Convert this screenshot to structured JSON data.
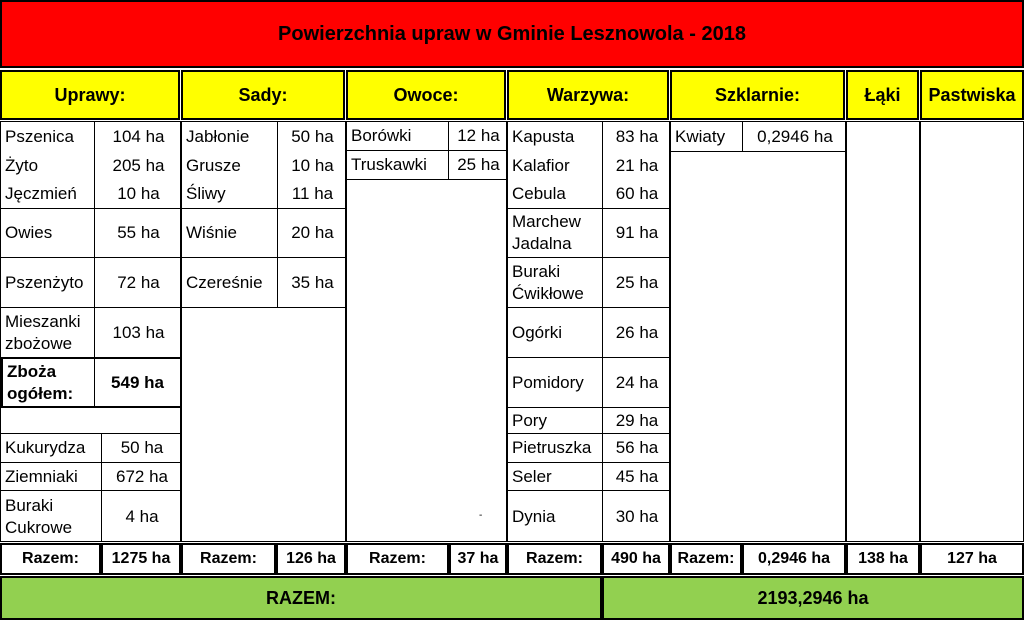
{
  "title": "Powierzchnia upraw w Gminie Lesznowola - 2018",
  "headers": {
    "uprawy": "Uprawy:",
    "sady": "Sady:",
    "owoce": "Owoce:",
    "warzywa": "Warzywa:",
    "szklarnie": "Szklarnie:",
    "laki": "Łąki",
    "pastwiska": "Pastwiska"
  },
  "uprawy": [
    {
      "name": "Pszenica",
      "value": "104 ha"
    },
    {
      "name": "Żyto",
      "value": "205 ha"
    },
    {
      "name": "Jęczmień",
      "value": "10 ha"
    },
    {
      "name": "Owies",
      "value": "55 ha"
    },
    {
      "name": "Pszenżyto",
      "value": "72 ha"
    },
    {
      "name": "Mieszanki zbożowe",
      "value": "103 ha"
    },
    {
      "name": "Zboża ogółem:",
      "value": "549 ha"
    },
    {
      "name": "Kukurydza",
      "value": "50 ha"
    },
    {
      "name": "Ziemniaki",
      "value": "672 ha"
    },
    {
      "name": "Buraki Cukrowe",
      "value": "4 ha"
    }
  ],
  "sady": [
    {
      "name": "Jabłonie",
      "value": "50 ha"
    },
    {
      "name": "Grusze",
      "value": "10 ha"
    },
    {
      "name": "Śliwy",
      "value": "11 ha"
    },
    {
      "name": "Wiśnie",
      "value": "20 ha"
    },
    {
      "name": "Czereśnie",
      "value": "35 ha"
    }
  ],
  "owoce": [
    {
      "name": "Borówki",
      "value": "12 ha"
    },
    {
      "name": "Truskawki",
      "value": "25 ha"
    }
  ],
  "owoce_mark": "-",
  "warzywa": [
    {
      "name": "Kapusta",
      "value": "83 ha"
    },
    {
      "name": "Kalafior",
      "value": "21 ha"
    },
    {
      "name": "Cebula",
      "value": "60 ha"
    },
    {
      "name": "Marchew Jadalna",
      "value": "91 ha"
    },
    {
      "name": "Buraki Ćwikłowe",
      "value": "25 ha"
    },
    {
      "name": "Ogórki",
      "value": "26 ha"
    },
    {
      "name": "Pomidory",
      "value": "24 ha"
    },
    {
      "name": "Pory",
      "value": "29 ha"
    },
    {
      "name": "Pietruszka",
      "value": "56 ha"
    },
    {
      "name": "Seler",
      "value": "45 ha"
    },
    {
      "name": "Dynia",
      "value": "30 ha"
    }
  ],
  "szklarnie": [
    {
      "name": "Kwiaty",
      "value": "0,2946 ha"
    }
  ],
  "razem_label": "Razem:",
  "totals": {
    "uprawy": "1275 ha",
    "sady": "126 ha",
    "owoce": "37 ha",
    "warzywa": "490 ha",
    "szklarnie": "0,2946 ha",
    "laki": "138 ha",
    "pastwiska": "127 ha"
  },
  "grand_total": {
    "label": "RAZEM:",
    "value": "2193,2946 ha"
  },
  "colors": {
    "title_bg": "#ff0000",
    "header_bg": "#ffff00",
    "total_bg": "#92d050"
  }
}
